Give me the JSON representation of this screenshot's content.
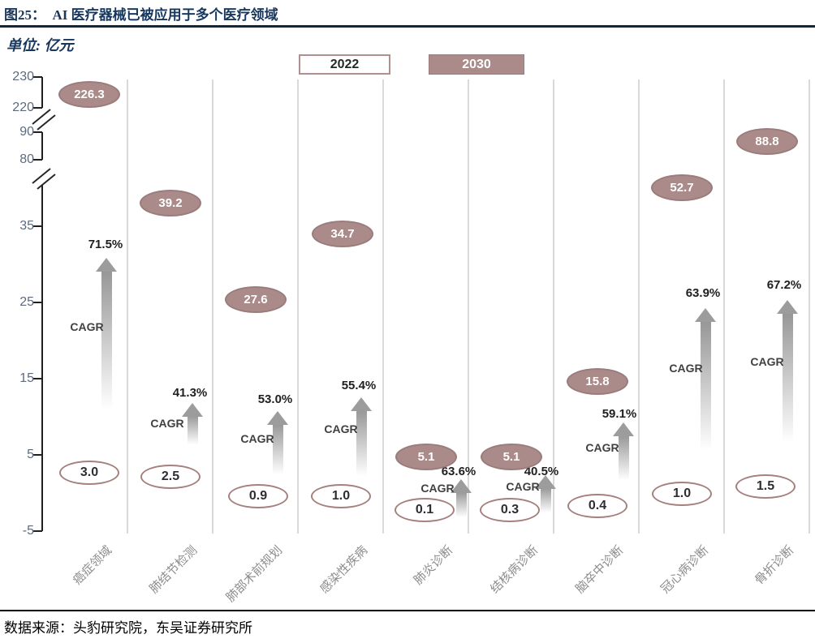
{
  "header": {
    "title": "图25：  AI 医疗器械已被应用于多个医疗领域",
    "unit_label": "单位: 亿元"
  },
  "legend": {
    "items": [
      {
        "label": "2022",
        "style": "outline"
      },
      {
        "label": "2030",
        "style": "filled"
      }
    ]
  },
  "chart_data": {
    "type": "scatter",
    "title": "AI 医疗器械已被应用于多个医疗领域",
    "unit": "亿元",
    "categories": [
      "癌症领域",
      "肺结节检测",
      "肺部术前规划",
      "感染性疾病",
      "肺炎诊断",
      "结核病诊断",
      "脑卒中诊断",
      "冠心病诊断",
      "骨折诊断"
    ],
    "series": [
      {
        "name": "2022",
        "values": [
          3.0,
          2.5,
          0.9,
          1.0,
          0.1,
          0.3,
          0.4,
          1.0,
          1.5
        ],
        "labels": [
          "3.0",
          "2.5",
          "0.9",
          "1.0",
          "0.1",
          "0.3",
          "0.4",
          "1.0",
          "1.5"
        ]
      },
      {
        "name": "2030",
        "values": [
          226.3,
          39.2,
          27.6,
          34.7,
          5.1,
          5.1,
          15.8,
          52.7,
          88.8
        ],
        "labels": [
          "226.3",
          "39.2",
          "27.6",
          "34.7",
          "5.1",
          "5.1",
          "15.8",
          "52.7",
          "88.8"
        ]
      }
    ],
    "cagr_label": "CAGR",
    "cagr": [
      "71.5%",
      "41.3%",
      "53.0%",
      "55.4%",
      "63.6%",
      "40.5%",
      "59.1%",
      "63.9%",
      "67.2%"
    ],
    "y_ticks": [
      "230",
      "220",
      "90",
      "80",
      "35",
      "25",
      "15",
      "5",
      "-5"
    ],
    "y_axis": {
      "broken_axis": true,
      "break_between": [
        [
          "220",
          "90"
        ],
        [
          "80",
          "35"
        ]
      ],
      "visible_range_bottom": [
        -5,
        35
      ]
    },
    "legend_position": "top",
    "grid": "vertical-column-separators"
  },
  "footer": {
    "source": "数据来源：头豹研究院，东吴证券研究所"
  },
  "colors": {
    "title_navy": "#17375e",
    "series_2030_fill": "#ab8a8a",
    "series_2030_border": "#9a7c7c",
    "series_2022_border": "#a5807e",
    "arrow_gray": "#969696",
    "separator_gray": "#d9d9d9",
    "y_axis_label": "#5d6b7c",
    "category_label": "#8c8c8c"
  }
}
